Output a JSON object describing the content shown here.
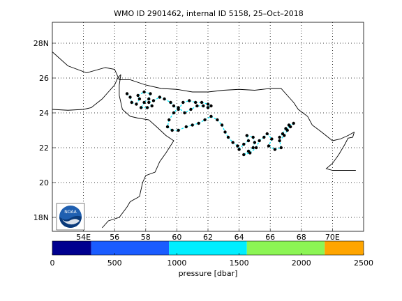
{
  "title": "WMO ID 2901462, internal ID 5158, 25–Oct–2018",
  "colors": {
    "land_outline": "#000000",
    "trajectory": "#000000",
    "grid": "#000000",
    "background": "#ffffff"
  },
  "logo": {
    "text": "NOAA",
    "icon": "noaa-logo-icon"
  },
  "chart_data": [
    {
      "type": "scatter",
      "description_role": "float trajectory map",
      "x_axis": {
        "range": [
          52,
          72
        ],
        "ticks": [
          54,
          56,
          58,
          60,
          62,
          64,
          66,
          68,
          70
        ],
        "tick_labels": [
          "54E",
          "56",
          "58",
          "60",
          "62",
          "64",
          "66",
          "68",
          "70E"
        ]
      },
      "y_axis": {
        "range": [
          17.2,
          29.2
        ],
        "ticks": [
          18,
          20,
          22,
          24,
          26,
          28
        ],
        "tick_labels": [
          "18N",
          "20",
          "22",
          "24",
          "26",
          "28N"
        ]
      },
      "grid": true,
      "coastline": [
        [
          [
            52.0,
            27.5
          ],
          [
            53.0,
            26.7
          ],
          [
            54.2,
            26.3
          ],
          [
            55.4,
            26.6
          ],
          [
            56.0,
            26.5
          ],
          [
            56.3,
            25.9
          ],
          [
            57.0,
            25.9
          ],
          [
            58.0,
            25.6
          ],
          [
            59.0,
            25.4
          ],
          [
            60.0,
            25.35
          ],
          [
            61.0,
            25.2
          ],
          [
            62.0,
            25.2
          ],
          [
            63.0,
            25.3
          ],
          [
            64.0,
            25.35
          ],
          [
            65.0,
            25.3
          ],
          [
            66.0,
            25.4
          ],
          [
            66.7,
            25.4
          ],
          [
            67.3,
            24.8
          ],
          [
            67.5,
            24.6
          ],
          [
            67.8,
            24.2
          ],
          [
            68.4,
            23.8
          ],
          [
            68.7,
            23.3
          ],
          [
            69.3,
            22.9
          ],
          [
            70.0,
            22.4
          ],
          [
            70.5,
            22.5
          ],
          [
            71.0,
            22.7
          ],
          [
            71.4,
            22.9
          ]
        ],
        [
          [
            71.4,
            22.9
          ],
          [
            71.3,
            22.6
          ],
          [
            71.0,
            22.55
          ],
          [
            70.8,
            22.2
          ],
          [
            70.4,
            21.6
          ],
          [
            70.0,
            21.1
          ],
          [
            69.6,
            20.8
          ],
          [
            70.0,
            20.7
          ],
          [
            71.5,
            20.7
          ]
        ],
        [
          [
            52.0,
            24.2
          ],
          [
            53.0,
            24.15
          ],
          [
            54.0,
            24.2
          ],
          [
            54.5,
            24.3
          ],
          [
            55.2,
            24.8
          ],
          [
            55.7,
            25.3
          ],
          [
            56.0,
            25.6
          ],
          [
            56.2,
            26.0
          ],
          [
            56.4,
            26.2
          ]
        ],
        [
          [
            56.4,
            26.2
          ],
          [
            56.3,
            25.6
          ],
          [
            56.3,
            25.0
          ],
          [
            56.5,
            24.2
          ],
          [
            57.0,
            23.8
          ],
          [
            57.5,
            23.7
          ],
          [
            58.2,
            23.6
          ],
          [
            58.7,
            23.2
          ],
          [
            59.3,
            22.7
          ],
          [
            59.8,
            22.4
          ],
          [
            59.3,
            21.7
          ],
          [
            58.9,
            21.2
          ],
          [
            58.6,
            20.6
          ],
          [
            58.0,
            20.4
          ],
          [
            57.8,
            20.0
          ],
          [
            57.6,
            19.2
          ],
          [
            57.0,
            18.9
          ],
          [
            56.8,
            18.6
          ],
          [
            56.3,
            18.0
          ],
          [
            55.6,
            17.8
          ],
          [
            55.2,
            17.4
          ]
        ]
      ],
      "trajectory": [
        [
          56.8,
          25.1
        ],
        [
          57.0,
          24.9
        ],
        [
          57.1,
          24.6
        ],
        [
          57.4,
          24.5
        ],
        [
          57.6,
          24.8
        ],
        [
          57.5,
          25.0
        ],
        [
          57.9,
          25.2
        ],
        [
          58.3,
          25.1
        ],
        [
          58.2,
          24.8
        ],
        [
          57.9,
          24.6
        ],
        [
          57.7,
          24.3
        ],
        [
          58.1,
          24.3
        ],
        [
          58.4,
          24.4
        ],
        [
          58.2,
          24.6
        ],
        [
          58.5,
          24.7
        ],
        [
          58.9,
          24.9
        ],
        [
          59.2,
          24.8
        ],
        [
          59.6,
          24.6
        ],
        [
          59.8,
          24.4
        ],
        [
          60.1,
          24.2
        ],
        [
          60.4,
          24.6
        ],
        [
          60.8,
          24.7
        ],
        [
          61.2,
          24.6
        ],
        [
          61.6,
          24.6
        ],
        [
          62.0,
          24.5
        ],
        [
          62.2,
          24.4
        ],
        [
          62.0,
          24.3
        ],
        [
          61.7,
          24.4
        ],
        [
          61.3,
          24.4
        ],
        [
          60.9,
          24.2
        ],
        [
          60.5,
          24.0
        ],
        [
          60.1,
          24.3
        ],
        [
          59.8,
          24.0
        ],
        [
          59.5,
          23.6
        ],
        [
          59.4,
          23.2
        ],
        [
          59.7,
          23.0
        ],
        [
          60.1,
          23.0
        ],
        [
          60.6,
          23.2
        ],
        [
          61.0,
          23.3
        ],
        [
          61.4,
          23.4
        ],
        [
          61.8,
          23.6
        ],
        [
          62.2,
          23.8
        ],
        [
          62.6,
          23.6
        ],
        [
          62.9,
          23.3
        ],
        [
          63.1,
          22.9
        ],
        [
          63.3,
          22.6
        ],
        [
          63.6,
          22.3
        ],
        [
          63.9,
          22.1
        ],
        [
          64.0,
          21.9
        ],
        [
          64.3,
          22.2
        ],
        [
          64.6,
          22.4
        ],
        [
          64.5,
          22.7
        ],
        [
          64.9,
          22.6
        ],
        [
          65.0,
          22.3
        ],
        [
          64.9,
          22.0
        ],
        [
          64.6,
          21.8
        ],
        [
          64.3,
          21.6
        ],
        [
          64.7,
          21.7
        ],
        [
          65.1,
          22.0
        ],
        [
          65.3,
          22.4
        ],
        [
          65.6,
          22.6
        ],
        [
          65.8,
          22.8
        ],
        [
          66.1,
          22.5
        ],
        [
          65.9,
          22.1
        ],
        [
          66.3,
          21.9
        ],
        [
          66.7,
          22.0
        ],
        [
          66.6,
          22.4
        ],
        [
          66.9,
          22.7
        ],
        [
          67.1,
          23.0
        ],
        [
          67.2,
          23.3
        ],
        [
          67.5,
          23.4
        ],
        [
          67.3,
          23.2
        ],
        [
          67.0,
          23.1
        ],
        [
          66.8,
          22.8
        ],
        [
          66.6,
          22.6
        ]
      ],
      "pressure_colorbar": {
        "label": "pressure [dbar]",
        "range": [
          0,
          2500
        ],
        "ticks": [
          0,
          500,
          1000,
          1500,
          2000,
          2500
        ],
        "bins": [
          {
            "from": 0,
            "to": 312.5,
            "color": "#00008f"
          },
          {
            "from": 312.5,
            "to": 937.5,
            "color": "#1a5cff"
          },
          {
            "from": 937.5,
            "to": 1562.5,
            "color": "#00eeff"
          },
          {
            "from": 1562.5,
            "to": 2187.5,
            "color": "#8cf554"
          },
          {
            "from": 2187.5,
            "to": 2500,
            "color": "#ffa500"
          }
        ]
      }
    }
  ]
}
